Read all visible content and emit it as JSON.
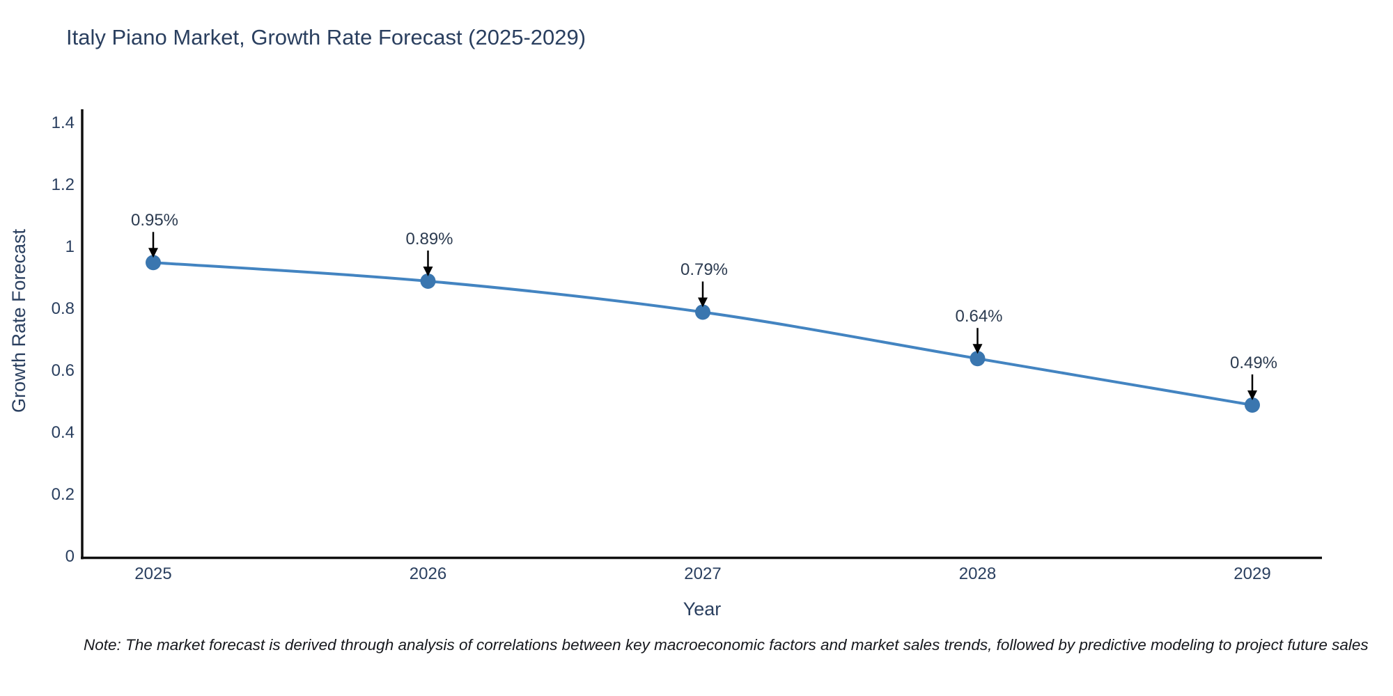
{
  "page": {
    "note": "Note: The market forecast is derived through analysis of correlations between key macroeconomic factors and market sales trends, followed by predictive modeling to project future sales"
  },
  "chart_data": {
    "type": "line",
    "title": "Italy Piano Market, Growth Rate Forecast (2025-2029)",
    "xlabel": "Year",
    "ylabel": "Growth Rate Forecast",
    "categories": [
      "2025",
      "2026",
      "2027",
      "2028",
      "2029"
    ],
    "values": [
      0.95,
      0.89,
      0.79,
      0.64,
      0.49
    ],
    "point_labels": [
      "0.95%",
      "0.89%",
      "0.79%",
      "0.64%",
      "0.49%"
    ],
    "ylim": [
      0,
      1.45
    ],
    "yticks": [
      0,
      0.2,
      0.4,
      0.6,
      0.8,
      1,
      1.2,
      1.4
    ],
    "ytick_labels": [
      "0",
      "0.2",
      "0.4",
      "0.6",
      "0.8",
      "1",
      "1.2",
      "1.4"
    ],
    "grid": false,
    "legend": "none",
    "line_shape": "spline",
    "marker": "circle",
    "annotations_have_arrows": true,
    "colors": {
      "line": "#4384c1",
      "marker": "#3a76af",
      "arrow": "#000000",
      "axis": "#0f0f0f",
      "tick_text": "#2a3f5f",
      "title_text": "#2a3f5f",
      "note_text": "#16181d",
      "background": "#ffffff"
    }
  }
}
